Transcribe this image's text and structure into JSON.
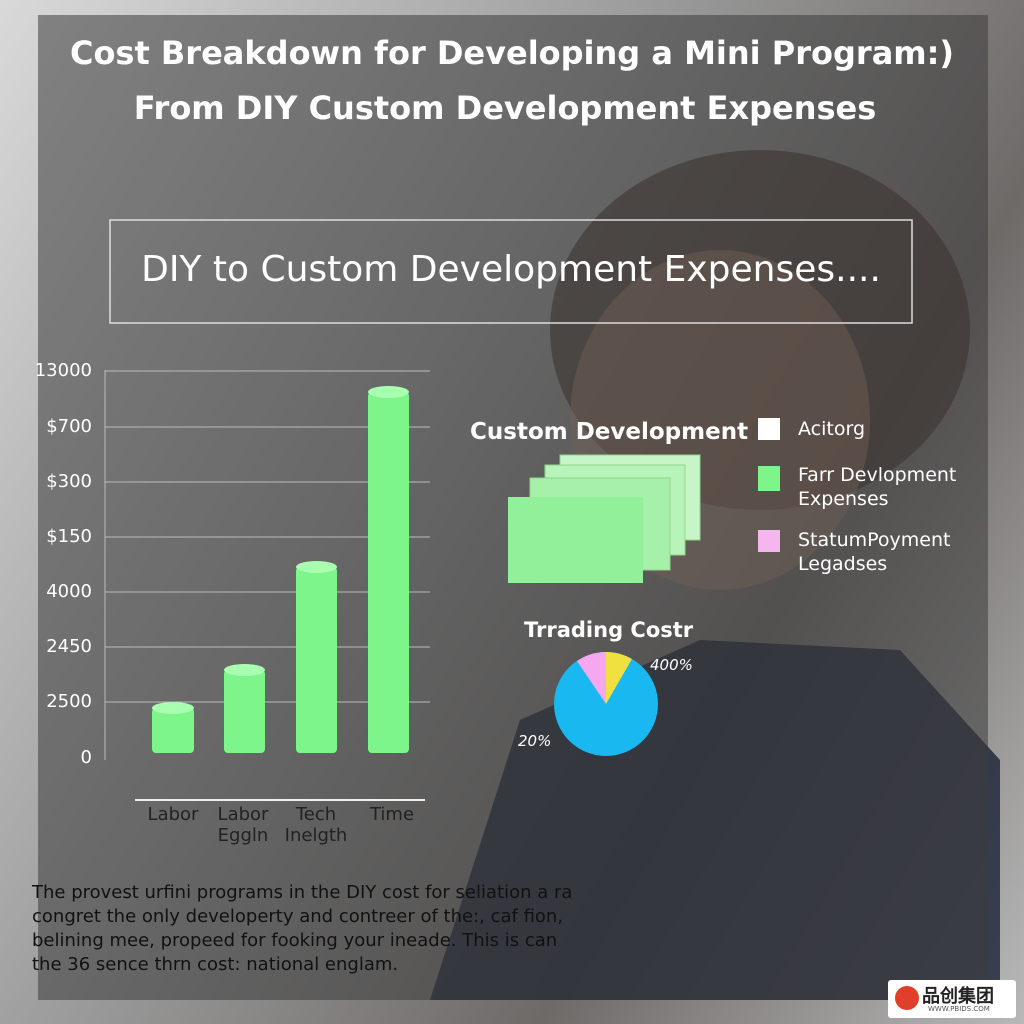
{
  "header": {
    "lines": [
      "Cost Breakdown for Developing a Mini Program:)",
      "From DIY Custom Development Expenses"
    ]
  },
  "banner": {
    "text": "DIY to Custom Development Expenses...."
  },
  "bar_panel": {
    "axis_labels": [
      "13000",
      "$700",
      "$300",
      "$150",
      "4000",
      "2450",
      "2500",
      "0"
    ],
    "categories": [
      [
        "Labor"
      ],
      [
        "Labor",
        "Eggln"
      ],
      [
        "Tech",
        "Inelgth"
      ],
      [
        "Time"
      ]
    ]
  },
  "custom_panel": {
    "title": "Custom Development"
  },
  "legend": {
    "items": [
      [
        "Acitorg"
      ],
      [
        "Farr Devlopment",
        "Expenses"
      ],
      [
        "StatumPoyment",
        "Legadses"
      ]
    ]
  },
  "pie_panel": {
    "title": "Trrading Costr",
    "labels": [
      "400%",
      "20%"
    ]
  },
  "paragraph": {
    "lines": [
      "The provest urfini programs in the DIY cost for seliation a ra",
      "congret the only developerty and contreer of the:, caf fion,",
      "belining mee, propeed for fooking your ineade. This is can",
      "the 36 sence thrn cost: national englam."
    ]
  },
  "logo": {
    "name": "品创集团",
    "url": "WWW.PBIDS.COM"
  }
}
